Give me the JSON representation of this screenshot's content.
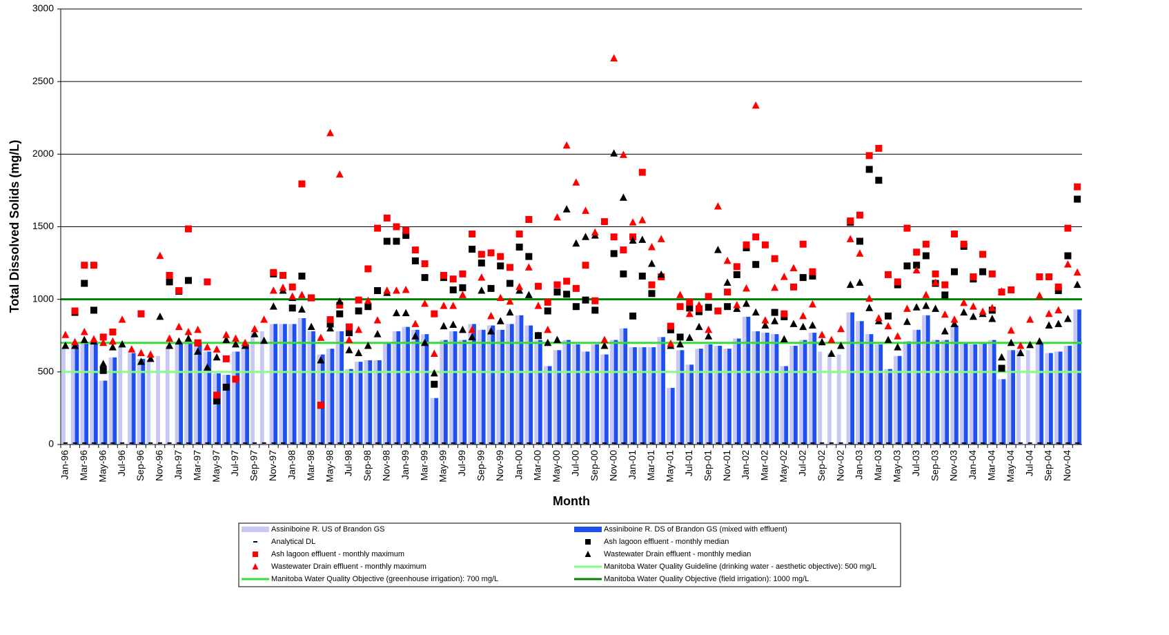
{
  "chart_data": {
    "type": "bar",
    "y_label": "Total Dissolved Solids (mg/L)",
    "x_label": "Month",
    "ylim": [
      0,
      3000
    ],
    "yticks": [
      0,
      500,
      1000,
      1500,
      2000,
      2500,
      3000
    ],
    "grid": true,
    "categories": [
      "Jan-96",
      null,
      "Mar-96",
      null,
      "May-96",
      null,
      "Jul-96",
      null,
      "Sep-96",
      null,
      "Nov-96",
      null,
      "Jan-97",
      null,
      "Mar-97",
      null,
      "May-97",
      null,
      "Jul-97",
      null,
      "Sep-97",
      null,
      "Nov-97",
      null,
      "Jan-98",
      null,
      "Mar-98",
      null,
      "May-98",
      null,
      "Jul-98",
      null,
      "Sep-98",
      null,
      "Nov-98",
      null,
      "Jan-99",
      null,
      "Mar-99",
      null,
      "May-99",
      null,
      "Jul-99",
      null,
      "Sep-99",
      null,
      "Nov-99",
      null,
      "Jan-00",
      null,
      "Mar-00",
      null,
      "May-00",
      null,
      "Jul-00",
      null,
      "Sep-00",
      null,
      "Nov-00",
      null,
      "Jan-01",
      null,
      "Mar-01",
      null,
      "May-01",
      null,
      "Jul-01",
      null,
      "Sep-01",
      null,
      "Nov-01",
      null,
      "Jan-02",
      null,
      "Mar-02",
      null,
      "May-02",
      null,
      "Jul-02",
      null,
      "Sep-02",
      null,
      "Nov-02",
      null,
      "Jan-03",
      null,
      "Mar-03",
      null,
      "May-03",
      null,
      "Jul-03",
      null,
      "Sep-03",
      null,
      "Nov-03",
      null,
      "Jan-04",
      null,
      "Mar-04",
      null,
      "May-04",
      null,
      "Jul-04",
      null,
      "Sep-04",
      null,
      "Nov-04",
      null
    ],
    "series": [
      {
        "name": "Assiniboine R. US of Brandon GS",
        "marker": "bar",
        "color": "#c8c8f5",
        "values": [
          670,
          690,
          700,
          700,
          440,
          600,
          680,
          630,
          590,
          580,
          610,
          680,
          700,
          700,
          700,
          640,
          490,
          480,
          640,
          690,
          770,
          780,
          830,
          830,
          830,
          870,
          780,
          620,
          660,
          780,
          520,
          570,
          580,
          580,
          700,
          780,
          810,
          790,
          760,
          320,
          720,
          780,
          720,
          830,
          790,
          820,
          790,
          830,
          890,
          820,
          720,
          540,
          650,
          720,
          690,
          640,
          690,
          620,
          720,
          800,
          670,
          670,
          670,
          740,
          390,
          650,
          550,
          660,
          690,
          680,
          660,
          730,
          880,
          780,
          770,
          760,
          540,
          680,
          720,
          770,
          640,
          630,
          620,
          910,
          850,
          760,
          690,
          520,
          610,
          710,
          790,
          890,
          720,
          720,
          820,
          700,
          690,
          700,
          720,
          450,
          650,
          650,
          650,
          700,
          630,
          640,
          680,
          930
        ]
      },
      {
        "name": "Assiniboine R. DS of Brandon GS (mixed with effluent)",
        "marker": "bar",
        "color": "#1e50f0",
        "values": [
          null,
          690,
          700,
          700,
          440,
          600,
          null,
          630,
          590,
          null,
          null,
          null,
          700,
          700,
          700,
          640,
          490,
          480,
          640,
          690,
          null,
          null,
          830,
          830,
          830,
          870,
          780,
          620,
          660,
          780,
          520,
          570,
          580,
          580,
          700,
          780,
          810,
          790,
          760,
          320,
          720,
          780,
          720,
          830,
          790,
          820,
          790,
          830,
          890,
          820,
          720,
          540,
          650,
          720,
          690,
          640,
          690,
          620,
          720,
          800,
          670,
          670,
          670,
          740,
          390,
          650,
          550,
          660,
          690,
          680,
          660,
          730,
          880,
          780,
          770,
          760,
          540,
          680,
          720,
          770,
          null,
          null,
          null,
          910,
          850,
          760,
          690,
          520,
          610,
          710,
          790,
          890,
          720,
          720,
          820,
          700,
          690,
          700,
          720,
          450,
          650,
          null,
          null,
          700,
          630,
          640,
          680,
          930
        ]
      },
      {
        "name": "Analytical DL",
        "marker": "dash",
        "color": "#000000",
        "values": [
          10,
          10,
          10,
          10,
          10,
          10,
          10,
          10,
          10,
          10,
          10,
          10,
          10,
          10,
          10,
          10,
          10,
          10,
          10,
          10,
          10,
          10,
          10,
          10,
          10,
          10,
          10,
          10,
          10,
          10,
          10,
          10,
          10,
          10,
          10,
          10,
          10,
          10,
          10,
          10,
          10,
          10,
          10,
          10,
          10,
          10,
          10,
          10,
          10,
          10,
          10,
          10,
          10,
          10,
          10,
          10,
          10,
          10,
          10,
          10,
          10,
          10,
          10,
          10,
          10,
          10,
          10,
          10,
          10,
          10,
          10,
          10,
          10,
          10,
          10,
          10,
          10,
          10,
          10,
          10,
          10,
          10,
          10,
          10,
          10,
          10,
          10,
          10,
          10,
          10,
          10,
          10,
          10,
          10,
          10,
          10,
          10,
          10,
          10,
          10,
          10,
          10,
          10,
          10,
          10,
          10,
          10,
          10
        ]
      },
      {
        "name": "Ash lagoon effluent - monthly median",
        "marker": "square",
        "color": "#000000",
        "values": [
          null,
          910,
          1110,
          925,
          510,
          null,
          null,
          null,
          900,
          null,
          null,
          1120,
          1055,
          1130,
          700,
          null,
          300,
          395,
          null,
          null,
          null,
          null,
          1175,
          null,
          940,
          1160,
          1010,
          270,
          830,
          900,
          770,
          920,
          950,
          1060,
          1400,
          1400,
          1440,
          1265,
          1150,
          415,
          1150,
          1065,
          1080,
          1345,
          1250,
          1075,
          1230,
          1110,
          1360,
          1295,
          750,
          920,
          1050,
          1035,
          950,
          995,
          925,
          null,
          1315,
          1175,
          885,
          1160,
          1040,
          null,
          790,
          740,
          940,
          915,
          945,
          920,
          950,
          1170,
          1355,
          1240,
          null,
          910,
          880,
          null,
          1150,
          1160,
          null,
          null,
          null,
          1530,
          1400,
          1895,
          1820,
          885,
          1100,
          1230,
          1235,
          1300,
          1110,
          1030,
          1190,
          1365,
          1140,
          1190,
          925,
          525,
          null,
          null,
          null,
          null,
          null,
          1060,
          1300,
          1690
        ]
      },
      {
        "name": "Ash lagoon effluent - monthly maximum",
        "marker": "square",
        "color": "#ff0000",
        "values": [
          null,
          920,
          1235,
          1235,
          740,
          775,
          null,
          null,
          900,
          null,
          null,
          1165,
          1060,
          1485,
          700,
          1120,
          340,
          590,
          450,
          null,
          null,
          null,
          1185,
          1165,
          1085,
          1795,
          1010,
          270,
          860,
          960,
          810,
          995,
          1210,
          1490,
          1560,
          1500,
          1475,
          1340,
          1245,
          900,
          1165,
          1140,
          1175,
          1450,
          1310,
          1320,
          1295,
          1220,
          1450,
          1550,
          1090,
          980,
          1100,
          1125,
          1075,
          1235,
          990,
          1535,
          1430,
          1340,
          1430,
          1875,
          1100,
          1155,
          815,
          950,
          980,
          935,
          1020,
          920,
          1050,
          1225,
          1375,
          1430,
          1375,
          1280,
          900,
          1085,
          1380,
          1190,
          null,
          null,
          null,
          1540,
          1580,
          1990,
          2040,
          1170,
          1120,
          1490,
          1325,
          1380,
          1175,
          1100,
          1450,
          1380,
          1155,
          1310,
          1175,
          1050,
          1065,
          null,
          null,
          1155,
          1155,
          1085,
          1490,
          1775
        ]
      },
      {
        "name": "Wastewater Drain effluent - monthly median",
        "marker": "triangle",
        "color": "#000000",
        "values": [
          680,
          680,
          720,
          710,
          555,
          670,
          690,
          null,
          570,
          590,
          880,
          680,
          710,
          730,
          640,
          530,
          600,
          720,
          690,
          680,
          760,
          715,
          950,
          1060,
          1010,
          930,
          810,
          580,
          800,
          985,
          650,
          630,
          680,
          760,
          1045,
          905,
          905,
          745,
          700,
          490,
          815,
          825,
          790,
          740,
          1060,
          780,
          850,
          910,
          1060,
          1030,
          750,
          700,
          720,
          1620,
          1385,
          1430,
          1440,
          680,
          2005,
          1700,
          1405,
          1410,
          1245,
          1170,
          680,
          690,
          735,
          810,
          745,
          1340,
          1115,
          935,
          970,
          910,
          820,
          850,
          725,
          830,
          810,
          820,
          705,
          625,
          680,
          1100,
          1115,
          940,
          850,
          720,
          670,
          845,
          945,
          955,
          935,
          780,
          830,
          910,
          880,
          900,
          865,
          600,
          700,
          630,
          685,
          710,
          820,
          830,
          865,
          1100
        ]
      },
      {
        "name": "Wastewater Drain effluent - monthly maximum",
        "marker": "triangle",
        "color": "#ff0000",
        "values": [
          755,
          705,
          775,
          725,
          700,
          710,
          860,
          655,
          630,
          620,
          1300,
          730,
          810,
          775,
          790,
          670,
          655,
          755,
          730,
          700,
          795,
          860,
          1060,
          1080,
          1020,
          1030,
          1010,
          735,
          2145,
          1860,
          720,
          790,
          990,
          855,
          1060,
          1060,
          1065,
          830,
          970,
          625,
          955,
          955,
          1030,
          790,
          1150,
          885,
          1010,
          985,
          1085,
          1220,
          955,
          790,
          1565,
          2060,
          1805,
          1610,
          1460,
          720,
          2660,
          1995,
          1530,
          1545,
          1360,
          1415,
          695,
          1030,
          900,
          960,
          790,
          1640,
          1265,
          960,
          1075,
          2335,
          855,
          1080,
          1155,
          1215,
          885,
          965,
          755,
          720,
          795,
          1415,
          1315,
          1005,
          870,
          815,
          745,
          935,
          1200,
          1030,
          1115,
          895,
          860,
          975,
          950,
          915,
          940,
          1055,
          785,
          680,
          860,
          1025,
          900,
          925,
          1240,
          1185
        ]
      }
    ],
    "hlines": [
      {
        "name": "Manitoba Water Quality Guideline (drinking water - aesthetic objective): 500 mg/L",
        "color": "#80ff80",
        "value": 500
      },
      {
        "name": "Manitoba Water Quality Objective (greenhouse irrigation): 700 mg/L",
        "color": "#33dd33",
        "value": 700
      },
      {
        "name": "Manitoba Water Quality Objective (field irrigation): 1000 mg/L",
        "color": "#008000",
        "value": 1000
      }
    ]
  }
}
